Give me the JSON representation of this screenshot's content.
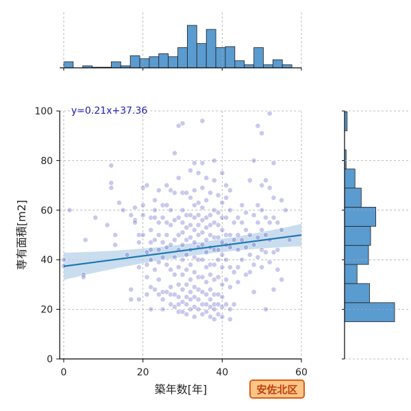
{
  "chart_data": {
    "type": "scatter",
    "xlabel": "築年数[年]",
    "ylabel": "専有面積[m2]",
    "xlim": [
      -1,
      60
    ],
    "ylim": [
      0,
      100
    ],
    "x_ticks": [
      0,
      20,
      40,
      60
    ],
    "y_ticks": [
      0,
      20,
      40,
      60,
      80,
      100
    ],
    "grid": true,
    "regression": {
      "label": "y=0.21x+37.36",
      "slope": 0.21,
      "intercept": 37.36,
      "ci_halfwidth_min": 2.5,
      "ci_halfwidth_max": 5.5
    },
    "badge": "安佐北区",
    "colors": {
      "point": "#3c3cc0",
      "hist": "#5a9bd0",
      "hist_edge": "#1f1f1f",
      "line": "#1f77b4",
      "ci": "#b7d1e8",
      "label": "#1f1fb0",
      "badge_bg": "#fcc68a",
      "badge_border": "#e05a10",
      "badge_text": "#c0400a"
    },
    "x_hist": {
      "bin_edges": [
        0,
        2.4,
        4.8,
        7.2,
        9.6,
        12,
        14.4,
        16.8,
        19.2,
        21.6,
        24,
        26.4,
        28.8,
        31.2,
        33.6,
        36,
        38.4,
        40.8,
        43.2,
        45.6,
        48,
        50.4,
        52.8,
        55.2,
        57.6,
        60
      ],
      "counts": [
        3,
        0,
        1,
        0.3,
        0.3,
        3,
        1,
        6,
        4.5,
        5.5,
        7,
        5.5,
        10,
        21,
        12,
        19,
        10,
        10.5,
        3.5,
        1.5,
        10,
        1.5,
        4,
        1.5,
        0
      ]
    },
    "y_hist": {
      "bin_edges": [
        15,
        22.7,
        30.4,
        38.1,
        45.8,
        53.5,
        61.2,
        68.9,
        76.6,
        84.3,
        92,
        99.7
      ],
      "counts": [
        48,
        24,
        12,
        23,
        25,
        30,
        16,
        10,
        1.5,
        0,
        2.5
      ]
    },
    "points": [
      [
        0,
        40
      ],
      [
        0,
        37.5
      ],
      [
        1.5,
        60
      ],
      [
        5,
        34
      ],
      [
        5,
        33
      ],
      [
        5.5,
        48
      ],
      [
        8,
        57
      ],
      [
        11,
        54
      ],
      [
        12,
        78
      ],
      [
        12,
        71
      ],
      [
        12,
        69
      ],
      [
        13,
        50
      ],
      [
        13,
        46
      ],
      [
        14,
        63
      ],
      [
        15,
        60
      ],
      [
        16,
        42
      ],
      [
        17,
        28
      ],
      [
        17,
        24
      ],
      [
        17,
        58
      ],
      [
        18,
        56
      ],
      [
        18,
        61
      ],
      [
        18,
        55
      ],
      [
        19,
        47
      ],
      [
        19,
        37
      ],
      [
        19,
        24
      ],
      [
        19,
        50
      ],
      [
        20,
        69
      ],
      [
        20,
        62
      ],
      [
        20,
        58
      ],
      [
        20,
        50
      ],
      [
        21,
        43
      ],
      [
        21,
        38
      ],
      [
        21,
        33
      ],
      [
        21,
        26
      ],
      [
        21,
        70
      ],
      [
        22,
        57
      ],
      [
        22,
        52
      ],
      [
        22,
        47
      ],
      [
        22,
        44
      ],
      [
        22,
        40
      ],
      [
        22,
        29
      ],
      [
        22,
        20
      ],
      [
        23,
        64
      ],
      [
        23,
        57
      ],
      [
        23,
        48
      ],
      [
        23,
        36
      ],
      [
        23,
        28
      ],
      [
        23,
        60
      ],
      [
        24,
        68
      ],
      [
        24,
        55
      ],
      [
        24,
        50
      ],
      [
        24,
        44
      ],
      [
        24,
        39
      ],
      [
        24,
        32
      ],
      [
        24,
        26
      ],
      [
        25,
        62
      ],
      [
        25,
        57
      ],
      [
        25,
        47
      ],
      [
        25,
        41
      ],
      [
        25,
        27
      ],
      [
        25,
        24
      ],
      [
        25,
        20
      ],
      [
        26,
        70
      ],
      [
        26,
        62
      ],
      [
        26,
        55
      ],
      [
        26,
        50
      ],
      [
        26,
        45
      ],
      [
        26,
        38
      ],
      [
        26,
        27
      ],
      [
        27,
        68
      ],
      [
        27,
        60
      ],
      [
        27,
        54
      ],
      [
        27,
        46
      ],
      [
        27,
        36
      ],
      [
        27,
        29
      ],
      [
        27,
        26
      ],
      [
        27,
        22
      ],
      [
        28,
        83
      ],
      [
        28,
        67
      ],
      [
        28,
        56
      ],
      [
        28,
        48
      ],
      [
        28,
        41
      ],
      [
        28,
        34
      ],
      [
        28,
        26
      ],
      [
        28,
        21
      ],
      [
        29,
        94
      ],
      [
        29,
        73
      ],
      [
        29,
        57
      ],
      [
        29,
        50
      ],
      [
        29,
        44
      ],
      [
        29,
        37
      ],
      [
        29,
        30
      ],
      [
        29,
        25
      ],
      [
        29,
        22
      ],
      [
        29,
        19
      ],
      [
        30,
        95
      ],
      [
        30,
        67
      ],
      [
        30,
        60
      ],
      [
        30,
        55
      ],
      [
        30,
        51
      ],
      [
        30,
        46
      ],
      [
        30,
        40
      ],
      [
        30,
        34
      ],
      [
        30,
        28
      ],
      [
        30,
        23
      ],
      [
        30,
        19
      ],
      [
        31,
        67
      ],
      [
        31,
        58
      ],
      [
        31,
        53
      ],
      [
        31,
        48
      ],
      [
        31,
        42
      ],
      [
        31,
        36
      ],
      [
        31,
        30
      ],
      [
        31,
        25
      ],
      [
        31,
        22
      ],
      [
        31,
        18
      ],
      [
        32,
        76
      ],
      [
        32,
        65
      ],
      [
        32,
        58
      ],
      [
        32,
        54
      ],
      [
        32,
        49
      ],
      [
        32,
        44
      ],
      [
        32,
        38
      ],
      [
        32,
        32
      ],
      [
        32,
        27
      ],
      [
        32,
        24
      ],
      [
        32,
        20
      ],
      [
        33,
        79
      ],
      [
        33,
        68
      ],
      [
        33,
        62
      ],
      [
        33,
        57
      ],
      [
        33,
        52
      ],
      [
        33,
        47
      ],
      [
        33,
        41
      ],
      [
        33,
        35
      ],
      [
        33,
        29
      ],
      [
        33,
        25
      ],
      [
        33,
        21
      ],
      [
        33,
        17
      ],
      [
        34,
        75
      ],
      [
        34,
        63
      ],
      [
        34,
        58
      ],
      [
        34,
        54
      ],
      [
        34,
        50
      ],
      [
        34,
        45
      ],
      [
        34,
        40
      ],
      [
        34,
        33
      ],
      [
        34,
        28
      ],
      [
        34,
        24
      ],
      [
        34,
        20
      ],
      [
        35,
        96
      ],
      [
        35,
        79
      ],
      [
        35,
        69
      ],
      [
        35,
        61
      ],
      [
        35,
        56
      ],
      [
        35,
        51
      ],
      [
        35,
        46
      ],
      [
        35,
        40
      ],
      [
        35,
        33
      ],
      [
        35,
        27
      ],
      [
        35,
        22
      ],
      [
        35,
        18
      ],
      [
        36,
        73
      ],
      [
        36,
        64
      ],
      [
        36,
        57
      ],
      [
        36,
        53
      ],
      [
        36,
        48
      ],
      [
        36,
        43
      ],
      [
        36,
        37
      ],
      [
        36,
        31
      ],
      [
        36,
        26
      ],
      [
        36,
        22
      ],
      [
        36,
        19
      ],
      [
        37,
        67
      ],
      [
        37,
        58
      ],
      [
        37,
        54
      ],
      [
        37,
        50
      ],
      [
        37,
        45
      ],
      [
        37,
        38
      ],
      [
        37,
        34
      ],
      [
        37,
        28
      ],
      [
        37,
        24
      ],
      [
        37,
        21
      ],
      [
        37,
        17
      ],
      [
        38,
        80
      ],
      [
        38,
        72
      ],
      [
        38,
        60
      ],
      [
        38,
        55
      ],
      [
        38,
        49
      ],
      [
        38,
        44
      ],
      [
        38,
        38
      ],
      [
        38,
        32
      ],
      [
        38,
        26
      ],
      [
        38,
        22
      ],
      [
        38,
        20
      ],
      [
        38,
        16
      ],
      [
        39,
        66
      ],
      [
        39,
        59
      ],
      [
        39,
        54
      ],
      [
        39,
        49
      ],
      [
        39,
        44
      ],
      [
        39,
        40
      ],
      [
        39,
        33
      ],
      [
        39,
        26
      ],
      [
        39,
        22
      ],
      [
        39,
        18
      ],
      [
        40,
        75
      ],
      [
        40,
        63
      ],
      [
        40,
        57
      ],
      [
        40,
        52
      ],
      [
        40,
        47
      ],
      [
        40,
        42
      ],
      [
        40,
        37
      ],
      [
        40,
        30
      ],
      [
        40,
        25
      ],
      [
        40,
        21
      ],
      [
        40,
        17
      ],
      [
        41,
        70
      ],
      [
        41,
        65
      ],
      [
        41,
        57
      ],
      [
        41,
        50
      ],
      [
        41,
        46
      ],
      [
        41,
        40
      ],
      [
        41,
        32
      ],
      [
        41,
        22
      ],
      [
        42,
        68
      ],
      [
        42,
        60
      ],
      [
        42,
        50
      ],
      [
        42,
        45
      ],
      [
        42,
        37
      ],
      [
        42,
        29
      ],
      [
        42,
        20
      ],
      [
        42,
        16
      ],
      [
        43,
        55
      ],
      [
        43,
        48
      ],
      [
        43,
        35
      ],
      [
        43,
        22
      ],
      [
        44,
        57
      ],
      [
        44,
        50
      ],
      [
        44,
        44
      ],
      [
        44,
        37
      ],
      [
        44,
        31
      ],
      [
        45,
        62
      ],
      [
        45,
        55
      ],
      [
        45,
        48
      ],
      [
        45,
        40
      ],
      [
        46,
        59
      ],
      [
        46,
        52
      ],
      [
        46,
        45
      ],
      [
        46,
        34
      ],
      [
        47,
        72
      ],
      [
        47,
        50
      ],
      [
        47,
        42
      ],
      [
        47,
        35
      ],
      [
        48,
        80
      ],
      [
        48,
        58
      ],
      [
        48,
        46
      ],
      [
        48,
        38
      ],
      [
        48,
        27
      ],
      [
        49,
        94
      ],
      [
        49,
        62
      ],
      [
        49,
        55
      ],
      [
        49,
        49
      ],
      [
        49,
        41
      ],
      [
        50,
        91
      ],
      [
        50,
        70
      ],
      [
        50,
        60
      ],
      [
        50,
        52
      ],
      [
        50,
        44
      ],
      [
        50,
        37
      ],
      [
        51,
        72
      ],
      [
        51,
        57
      ],
      [
        51,
        50
      ],
      [
        51,
        43
      ],
      [
        51,
        20
      ],
      [
        52,
        99
      ],
      [
        52,
        69
      ],
      [
        52,
        55
      ],
      [
        52,
        48
      ],
      [
        52,
        39
      ],
      [
        53,
        79
      ],
      [
        53,
        65
      ],
      [
        53,
        57
      ],
      [
        53,
        43
      ],
      [
        53,
        28
      ],
      [
        54,
        55
      ],
      [
        54,
        44
      ],
      [
        54,
        36
      ],
      [
        55,
        64
      ],
      [
        55,
        52
      ],
      [
        55,
        32
      ],
      [
        56,
        60
      ],
      [
        57,
        48
      ]
    ]
  }
}
